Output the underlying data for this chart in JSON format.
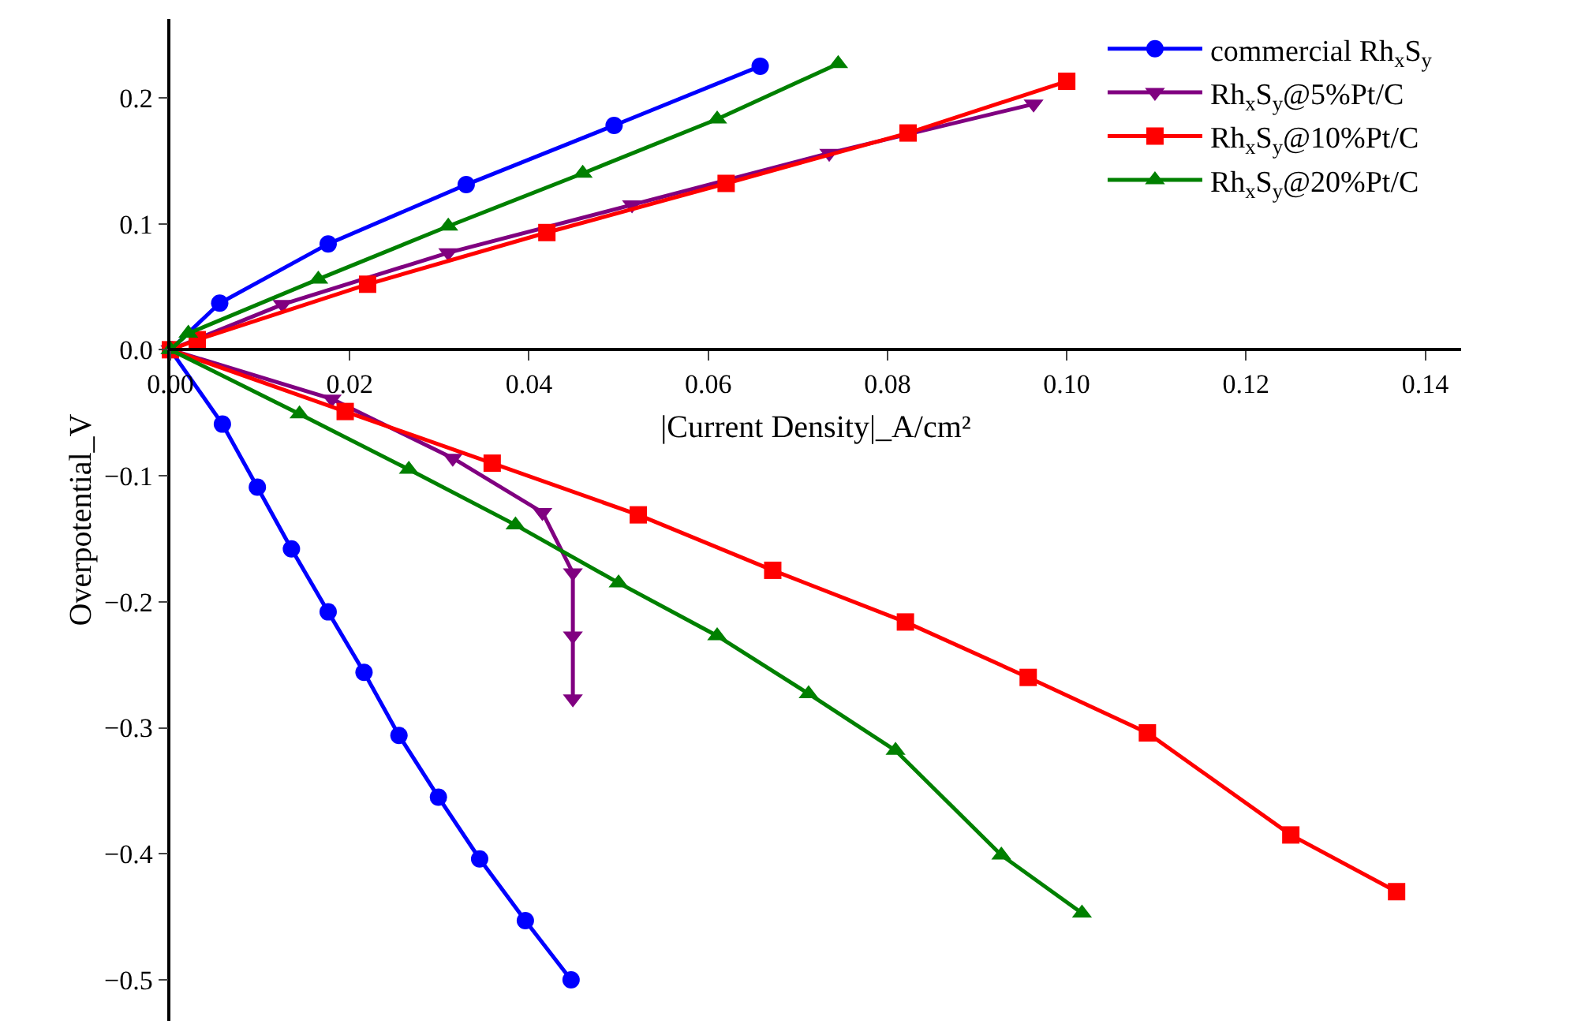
{
  "chart_data": {
    "type": "line",
    "xlabel": "|Current Density|_A/cm²",
    "ylabel": "Overpotential_V",
    "xlim": [
      0,
      0.144
    ],
    "ylim": [
      -0.5325,
      0.2625
    ],
    "xticks": [
      {
        "value": 0,
        "label": "0.00"
      },
      {
        "value": 0.02,
        "label": "0.02"
      },
      {
        "value": 0.04,
        "label": "0.04"
      },
      {
        "value": 0.06,
        "label": "0.06"
      },
      {
        "value": 0.08,
        "label": "0.08"
      },
      {
        "value": 0.1,
        "label": "0.10"
      },
      {
        "value": 0.12,
        "label": "0.12"
      },
      {
        "value": 0.14,
        "label": "0.14"
      }
    ],
    "yticks": [
      {
        "value": -0.5,
        "label": "−0.5"
      },
      {
        "value": -0.4,
        "label": "−0.4"
      },
      {
        "value": -0.3,
        "label": "−0.3"
      },
      {
        "value": -0.2,
        "label": "−0.2"
      },
      {
        "value": -0.1,
        "label": "−0.1"
      },
      {
        "value": 0,
        "label": "0.0"
      },
      {
        "value": 0.1,
        "label": "0.1"
      },
      {
        "value": 0.2,
        "label": "0.2"
      }
    ],
    "grid": false,
    "legend": "top right",
    "line_style": "solid",
    "series": [
      {
        "name": "commercial Rh$_{x}$S$_{y}$",
        "color": "#0000ff",
        "marker": "circle",
        "x": [
          0.0658,
          0.0495,
          0.033,
          0.0176,
          0.0055,
          0,
          0.0058,
          0.0097,
          0.0135,
          0.0176,
          0.0216,
          0.0255,
          0.0299,
          0.0345,
          0.0396,
          0.0447
        ],
        "values": [
          0.225,
          0.178,
          0.131,
          0.084,
          0.037,
          0,
          -0.059,
          -0.109,
          -0.158,
          -0.208,
          -0.256,
          -0.306,
          -0.355,
          -0.404,
          -0.453,
          -0.5
        ]
      },
      {
        "name": "Rh$_{x}$S$_{y}$@5%Pt/C",
        "color": "#800080",
        "marker": "triangle-down",
        "x": [
          0.0963,
          0.0735,
          0.0515,
          0.031,
          0.0125,
          0,
          0.018,
          0.0315,
          0.0415,
          0.0449,
          0.0449,
          0.0449
        ],
        "values": [
          0.195,
          0.156,
          0.115,
          0.077,
          0.036,
          0,
          -0.039,
          -0.086,
          -0.129,
          -0.177,
          -0.227,
          -0.277
        ]
      },
      {
        "name": "Rh$_{x}$S$_{y}$@10%Pt/C",
        "color": "#ff0000",
        "marker": "square",
        "x": [
          0.1,
          0.0823,
          0.062,
          0.042,
          0.022,
          0.003,
          0,
          0.0195,
          0.0359,
          0.0522,
          0.0672,
          0.082,
          0.0957,
          0.109,
          0.125,
          0.1368
        ],
        "values": [
          0.213,
          0.172,
          0.132,
          0.093,
          0.052,
          0.008,
          0,
          -0.049,
          -0.09,
          -0.131,
          -0.175,
          -0.216,
          -0.26,
          -0.304,
          -0.385,
          -0.43
        ]
      },
      {
        "name": "Rh$_{x}$S$_{y}$@20%Pt/C",
        "color": "#008000",
        "marker": "triangle",
        "x": [
          0.0745,
          0.061,
          0.046,
          0.031,
          0.0165,
          0.002,
          0,
          0.0144,
          0.0266,
          0.0385,
          0.05,
          0.061,
          0.0712,
          0.0809,
          0.0927,
          0.1017
        ],
        "values": [
          0.227,
          0.183,
          0.14,
          0.098,
          0.056,
          0.013,
          0,
          -0.051,
          -0.095,
          -0.139,
          -0.185,
          -0.227,
          -0.273,
          -0.318,
          -0.401,
          -0.447
        ]
      }
    ]
  }
}
